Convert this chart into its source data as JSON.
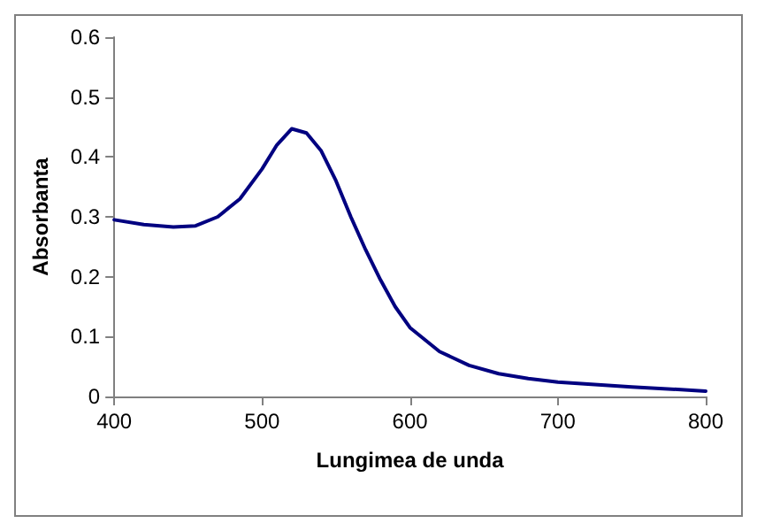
{
  "chart_data": {
    "type": "line",
    "xlabel": "Lungimea de unda",
    "ylabel": "Absorbanta",
    "x": [
      400,
      420,
      440,
      455,
      470,
      485,
      500,
      510,
      520,
      530,
      540,
      550,
      560,
      570,
      580,
      590,
      600,
      620,
      640,
      660,
      680,
      700,
      750,
      800
    ],
    "series": [
      {
        "color": "#000080",
        "values": [
          0.295,
          0.287,
          0.283,
          0.285,
          0.3,
          0.33,
          0.38,
          0.42,
          0.447,
          0.44,
          0.41,
          0.36,
          0.3,
          0.245,
          0.195,
          0.15,
          0.115,
          0.075,
          0.052,
          0.038,
          0.03,
          0.024,
          0.016,
          0.009
        ]
      }
    ],
    "xlim": [
      400,
      800
    ],
    "xticks": [
      400,
      500,
      600,
      700,
      800
    ],
    "ylim": [
      0,
      0.6
    ],
    "yticks": [
      0,
      0.1,
      0.2,
      0.3,
      0.4,
      0.5,
      0.6
    ],
    "grid": false,
    "marker": "none",
    "line_style": "solid"
  }
}
